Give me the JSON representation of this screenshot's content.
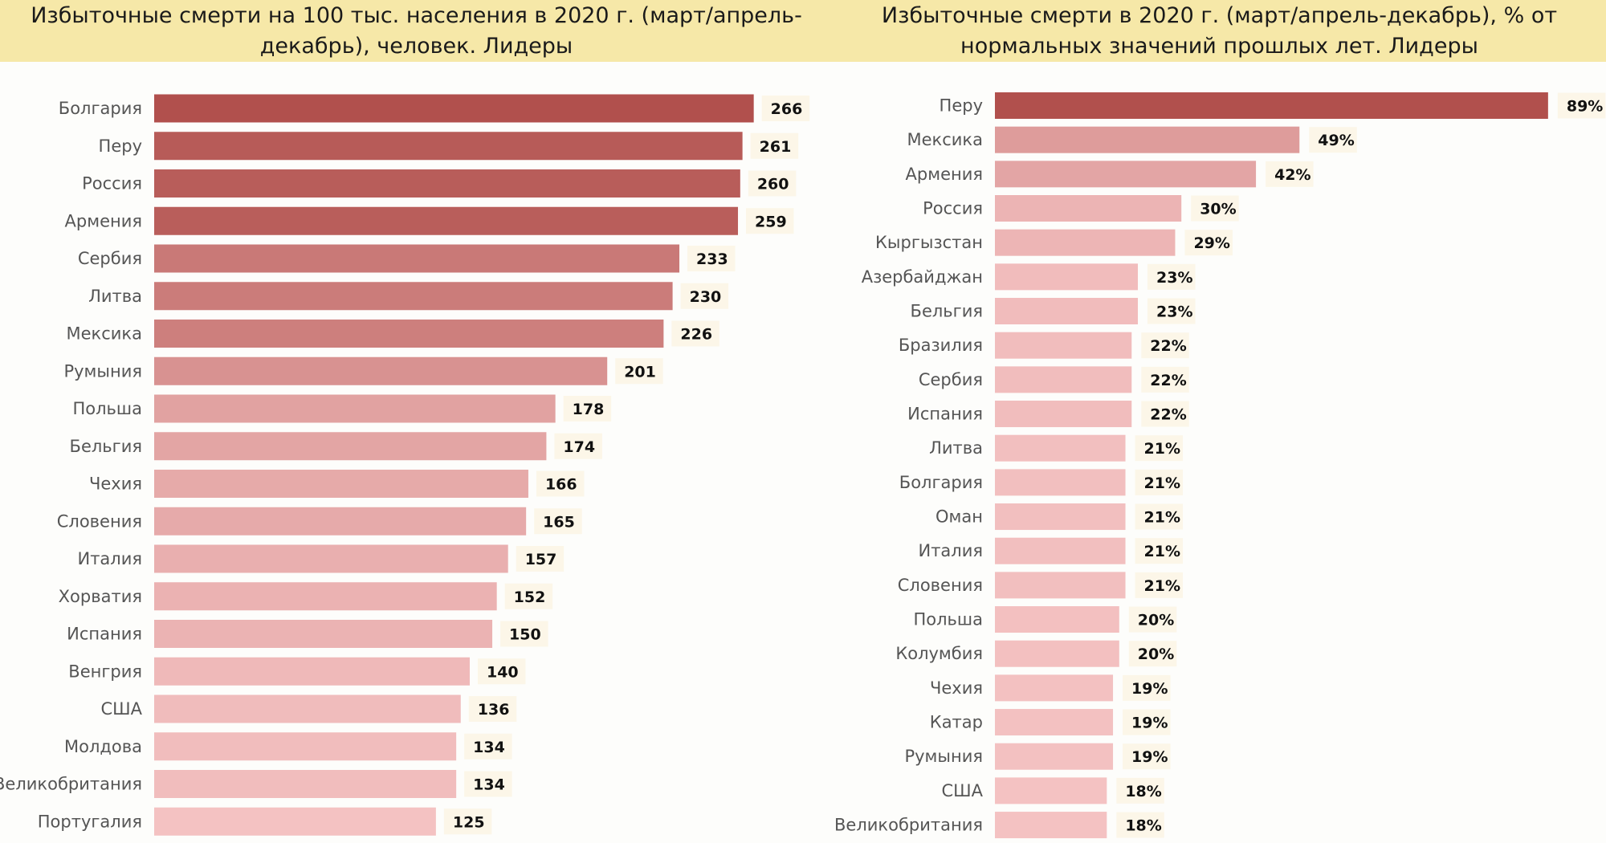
{
  "colors": {
    "header_bg": "#f6e8a8",
    "dark": "#b1504d",
    "light": "#f4c2c2",
    "label_bg": "#fcf6e8"
  },
  "chart_data": [
    {
      "type": "bar",
      "orientation": "horizontal",
      "title": "Избыточные смерти на 100 тыс. населения в 2020 г. (март/апрель-декабрь), человек. Лидеры",
      "categories": [
        "Болгария",
        "Перу",
        "Россия",
        "Армения",
        "Сербия",
        "Литва",
        "Мексика",
        "Румыния",
        "Польша",
        "Бельгия",
        "Чехия",
        "Словения",
        "Италия",
        "Хорватия",
        "Испания",
        "Венгрия",
        "США",
        "Молдова",
        "Великобритания",
        "Португалия"
      ],
      "values": [
        266,
        261,
        260,
        259,
        233,
        230,
        226,
        201,
        178,
        174,
        166,
        165,
        157,
        152,
        150,
        140,
        136,
        134,
        134,
        125
      ],
      "value_suffix": "",
      "xlim": [
        0,
        300
      ],
      "grid": false,
      "legend": "none"
    },
    {
      "type": "bar",
      "orientation": "horizontal",
      "title": "Избыточные смерти в 2020 г. (март/апрель-декабрь), % от нормальных значений прошлых лет. Лидеры",
      "categories": [
        "Перу",
        "Мексика",
        "Армения",
        "Россия",
        "Кыргызстан",
        "Азербайджан",
        "Бельгия",
        "Бразилия",
        "Сербия",
        "Испания",
        "Литва",
        "Болгария",
        "Оман",
        "Италия",
        "Словения",
        "Польша",
        "Колумбия",
        "Чехия",
        "Катар",
        "Румыния",
        "США",
        "Великобритания"
      ],
      "values": [
        89,
        49,
        42,
        30,
        29,
        23,
        23,
        22,
        22,
        22,
        21,
        21,
        21,
        21,
        21,
        20,
        20,
        19,
        19,
        19,
        18,
        18
      ],
      "value_suffix": "%",
      "xlim": [
        0,
        100
      ],
      "grid": false,
      "legend": "none"
    }
  ]
}
